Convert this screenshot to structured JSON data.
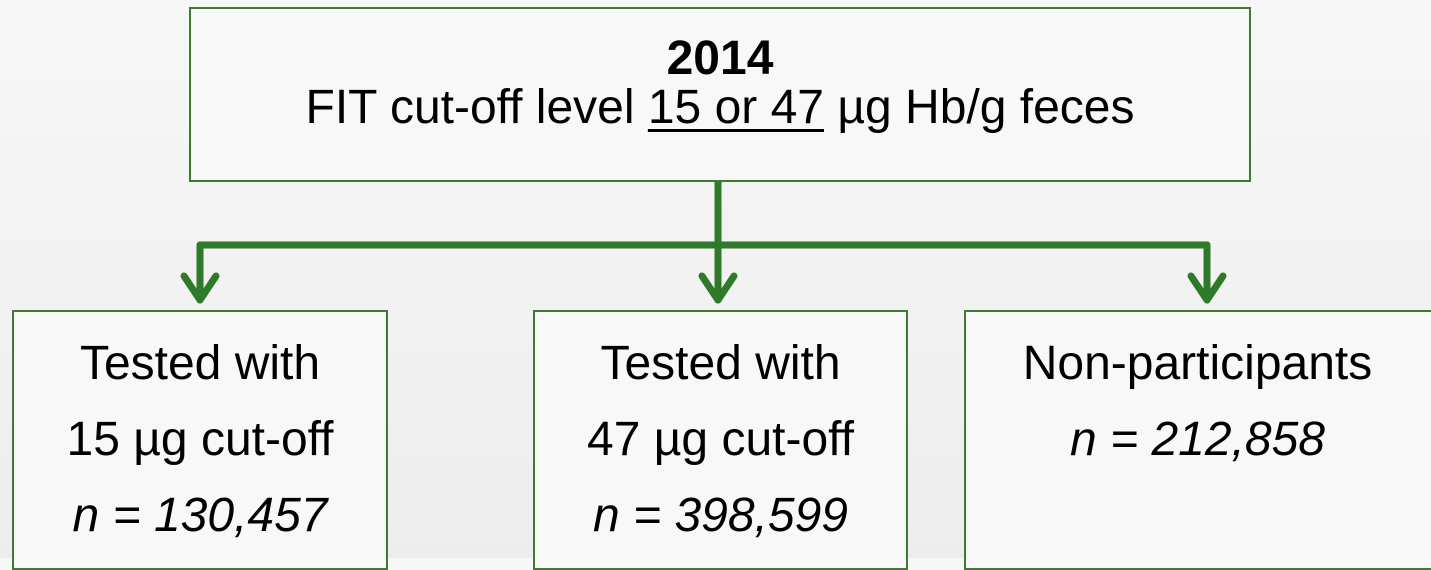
{
  "top": {
    "title": "2014",
    "text_before": "FIT cut-off level",
    "underlined": "15 or 47",
    "text_after": "µg Hb/g feces"
  },
  "nodes": [
    {
      "lines": [
        "Tested with",
        "15 µg cut-off"
      ],
      "n": "n = 130,457"
    },
    {
      "lines": [
        "Tested with",
        "47 µg cut-off"
      ],
      "n": "n = 398,599"
    },
    {
      "lines": [
        "Non-participants"
      ],
      "n": "n = 212,858"
    }
  ]
}
